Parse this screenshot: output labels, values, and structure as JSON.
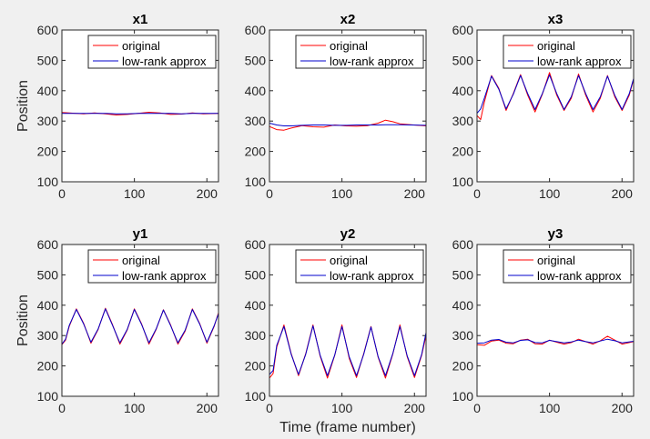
{
  "figure": {
    "xlabel": "Time (frame number)",
    "ylabel": "Position"
  },
  "chart_data": [
    {
      "type": "line",
      "title": "x1",
      "xlabel": "",
      "ylabel": "Position",
      "xlim": [
        0,
        216
      ],
      "ylim": [
        100,
        600
      ],
      "xticks": [
        0,
        100,
        200
      ],
      "yticks": [
        100,
        200,
        300,
        400,
        500,
        600
      ],
      "legend": {
        "position": "top-right",
        "entries": [
          "original",
          "low-rank approx"
        ]
      },
      "series": [
        {
          "name": "original",
          "color": "#ff0000",
          "x": [
            0,
            15,
            30,
            45,
            60,
            75,
            90,
            105,
            120,
            135,
            150,
            165,
            180,
            195,
            216
          ],
          "y": [
            328,
            326,
            324,
            327,
            324,
            320,
            322,
            325,
            329,
            327,
            322,
            323,
            327,
            324,
            325
          ]
        },
        {
          "name": "low-rank approx",
          "color": "#0000cc",
          "x": [
            0,
            15,
            30,
            45,
            60,
            75,
            90,
            105,
            120,
            135,
            150,
            165,
            180,
            195,
            216
          ],
          "y": [
            325,
            325,
            325,
            325,
            325,
            324,
            324,
            325,
            325,
            325,
            325,
            324,
            325,
            325,
            325
          ]
        }
      ]
    },
    {
      "type": "line",
      "title": "x2",
      "xlabel": "",
      "ylabel": "",
      "xlim": [
        0,
        216
      ],
      "ylim": [
        100,
        600
      ],
      "xticks": [
        0,
        100,
        200
      ],
      "yticks": [
        100,
        200,
        300,
        400,
        500,
        600
      ],
      "legend": {
        "position": "top-right",
        "entries": [
          "original",
          "low-rank approx"
        ]
      },
      "series": [
        {
          "name": "original",
          "color": "#ff0000",
          "x": [
            0,
            10,
            20,
            30,
            45,
            60,
            75,
            90,
            105,
            120,
            135,
            150,
            160,
            170,
            180,
            195,
            216
          ],
          "y": [
            282,
            272,
            270,
            277,
            285,
            281,
            280,
            287,
            284,
            283,
            285,
            293,
            303,
            298,
            291,
            288,
            284
          ]
        },
        {
          "name": "low-rank approx",
          "color": "#0000cc",
          "x": [
            0,
            10,
            20,
            30,
            45,
            60,
            75,
            90,
            105,
            120,
            135,
            150,
            160,
            170,
            180,
            195,
            216
          ],
          "y": [
            293,
            287,
            284,
            284,
            286,
            287,
            287,
            286,
            286,
            287,
            287,
            287,
            288,
            288,
            288,
            287,
            286
          ]
        }
      ]
    },
    {
      "type": "line",
      "title": "x3",
      "xlabel": "",
      "ylabel": "",
      "xlim": [
        0,
        216
      ],
      "ylim": [
        100,
        600
      ],
      "xticks": [
        0,
        100,
        200
      ],
      "yticks": [
        100,
        200,
        300,
        400,
        500,
        600
      ],
      "legend": {
        "position": "top-right",
        "entries": [
          "original",
          "low-rank approx"
        ]
      },
      "series": [
        {
          "name": "original",
          "color": "#ff0000",
          "x": [
            0,
            5,
            10,
            20,
            30,
            40,
            50,
            60,
            70,
            80,
            90,
            100,
            110,
            120,
            130,
            140,
            150,
            160,
            170,
            180,
            190,
            200,
            210,
            216
          ],
          "y": [
            318,
            305,
            362,
            450,
            408,
            335,
            390,
            453,
            385,
            330,
            388,
            460,
            385,
            335,
            375,
            455,
            385,
            330,
            375,
            450,
            380,
            335,
            385,
            438
          ]
        },
        {
          "name": "low-rank approx",
          "color": "#0000cc",
          "x": [
            0,
            5,
            10,
            20,
            30,
            40,
            50,
            60,
            70,
            80,
            90,
            100,
            110,
            120,
            130,
            140,
            150,
            160,
            170,
            180,
            190,
            200,
            210,
            216
          ],
          "y": [
            326,
            340,
            375,
            448,
            405,
            340,
            388,
            450,
            390,
            338,
            390,
            452,
            390,
            338,
            380,
            450,
            390,
            338,
            380,
            448,
            385,
            338,
            390,
            440
          ]
        }
      ]
    },
    {
      "type": "line",
      "title": "y1",
      "xlabel": "",
      "ylabel": "Position",
      "xlim": [
        0,
        216
      ],
      "ylim": [
        100,
        600
      ],
      "xticks": [
        0,
        100,
        200
      ],
      "yticks": [
        100,
        200,
        300,
        400,
        500,
        600
      ],
      "legend": {
        "position": "top-right",
        "entries": [
          "original",
          "low-rank approx"
        ]
      },
      "series": [
        {
          "name": "original",
          "color": "#ff0000",
          "x": [
            0,
            5,
            10,
            20,
            30,
            40,
            50,
            60,
            70,
            80,
            90,
            100,
            110,
            120,
            130,
            140,
            150,
            160,
            170,
            180,
            190,
            200,
            210,
            216
          ],
          "y": [
            270,
            285,
            330,
            388,
            340,
            275,
            320,
            390,
            335,
            272,
            318,
            388,
            338,
            272,
            320,
            385,
            335,
            272,
            315,
            388,
            340,
            275,
            330,
            375
          ]
        },
        {
          "name": "low-rank approx",
          "color": "#0000cc",
          "x": [
            0,
            5,
            10,
            20,
            30,
            40,
            50,
            60,
            70,
            80,
            90,
            100,
            110,
            120,
            130,
            140,
            150,
            160,
            170,
            180,
            190,
            200,
            210,
            216
          ],
          "y": [
            272,
            288,
            333,
            386,
            338,
            278,
            322,
            388,
            333,
            276,
            320,
            386,
            336,
            276,
            322,
            384,
            333,
            276,
            318,
            386,
            338,
            278,
            332,
            372
          ]
        }
      ]
    },
    {
      "type": "line",
      "title": "y2",
      "xlabel": "Time (frame number)",
      "ylabel": "",
      "xlim": [
        0,
        216
      ],
      "ylim": [
        100,
        600
      ],
      "xticks": [
        0,
        100,
        200
      ],
      "yticks": [
        100,
        200,
        300,
        400,
        500,
        600
      ],
      "legend": {
        "position": "top-right",
        "entries": [
          "original",
          "low-rank approx"
        ]
      },
      "series": [
        {
          "name": "original",
          "color": "#ff0000",
          "x": [
            0,
            5,
            10,
            20,
            30,
            40,
            50,
            60,
            70,
            80,
            90,
            100,
            110,
            120,
            130,
            140,
            150,
            160,
            170,
            180,
            190,
            200,
            210,
            216
          ],
          "y": [
            160,
            175,
            262,
            335,
            240,
            168,
            240,
            335,
            232,
            160,
            235,
            335,
            225,
            162,
            240,
            330,
            228,
            160,
            238,
            335,
            230,
            162,
            235,
            300
          ]
        },
        {
          "name": "low-rank approx",
          "color": "#0000cc",
          "x": [
            0,
            5,
            10,
            20,
            30,
            40,
            50,
            60,
            70,
            80,
            90,
            100,
            110,
            120,
            130,
            140,
            150,
            160,
            170,
            180,
            190,
            200,
            210,
            216
          ],
          "y": [
            172,
            185,
            268,
            330,
            238,
            172,
            238,
            332,
            235,
            168,
            236,
            330,
            230,
            168,
            238,
            328,
            230,
            168,
            240,
            330,
            233,
            168,
            238,
            310
          ]
        }
      ]
    },
    {
      "type": "line",
      "title": "y3",
      "xlabel": "",
      "ylabel": "",
      "xlim": [
        0,
        216
      ],
      "ylim": [
        100,
        600
      ],
      "xticks": [
        0,
        100,
        200
      ],
      "yticks": [
        100,
        200,
        300,
        400,
        500,
        600
      ],
      "legend": {
        "position": "top-right",
        "entries": [
          "original",
          "low-rank approx"
        ]
      },
      "series": [
        {
          "name": "original",
          "color": "#ff0000",
          "x": [
            0,
            10,
            20,
            30,
            40,
            50,
            60,
            70,
            80,
            90,
            100,
            110,
            120,
            130,
            140,
            150,
            160,
            170,
            180,
            190,
            200,
            216
          ],
          "y": [
            270,
            268,
            282,
            285,
            275,
            273,
            285,
            288,
            273,
            272,
            285,
            278,
            272,
            277,
            288,
            280,
            272,
            283,
            298,
            285,
            272,
            280
          ]
        },
        {
          "name": "low-rank approx",
          "color": "#0000cc",
          "x": [
            0,
            10,
            20,
            30,
            40,
            50,
            60,
            70,
            80,
            90,
            100,
            110,
            120,
            130,
            140,
            150,
            160,
            170,
            180,
            190,
            200,
            216
          ],
          "y": [
            275,
            276,
            285,
            287,
            278,
            276,
            284,
            286,
            277,
            276,
            284,
            280,
            276,
            279,
            285,
            280,
            276,
            282,
            288,
            283,
            276,
            281
          ]
        }
      ]
    }
  ]
}
